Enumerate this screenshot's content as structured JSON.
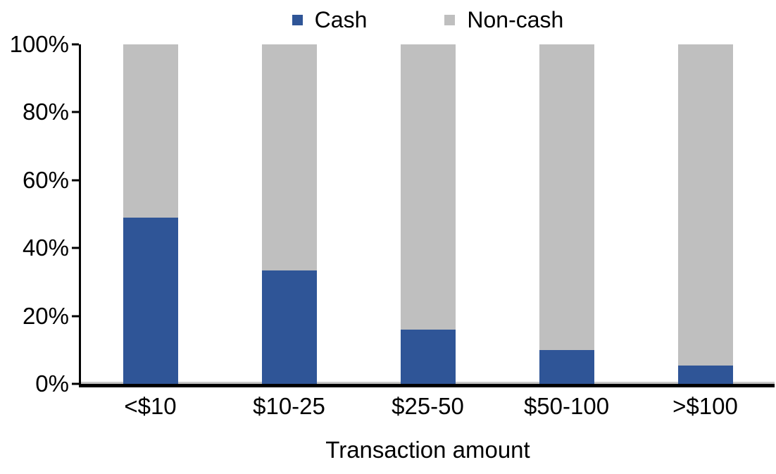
{
  "legend": {
    "items": [
      {
        "label": "Cash",
        "color": "#2F5597"
      },
      {
        "label": "Non-cash",
        "color": "#BFBFBF"
      }
    ]
  },
  "axes": {
    "axis_color": "#000000",
    "zero_gridline_color": "#C8C8C8"
  },
  "chart_data": {
    "type": "bar",
    "stacked": true,
    "stacked_to_100_percent": true,
    "title": "",
    "xlabel": "Transaction amount",
    "ylabel": "",
    "categories": [
      "<$10",
      "$10-25",
      "$25-50",
      "$50-100",
      ">$100"
    ],
    "series": [
      {
        "name": "Cash",
        "color": "#2F5597",
        "values": [
          49,
          33.5,
          16,
          10,
          5.5
        ]
      },
      {
        "name": "Non-cash",
        "color": "#BFBFBF",
        "values": [
          51,
          66.5,
          84,
          90,
          94.5
        ]
      }
    ],
    "ylim": [
      0,
      100
    ],
    "yticks": [
      "0%",
      "20%",
      "40%",
      "60%",
      "80%",
      "100%"
    ],
    "grid": false,
    "legend_position": "top-center"
  }
}
